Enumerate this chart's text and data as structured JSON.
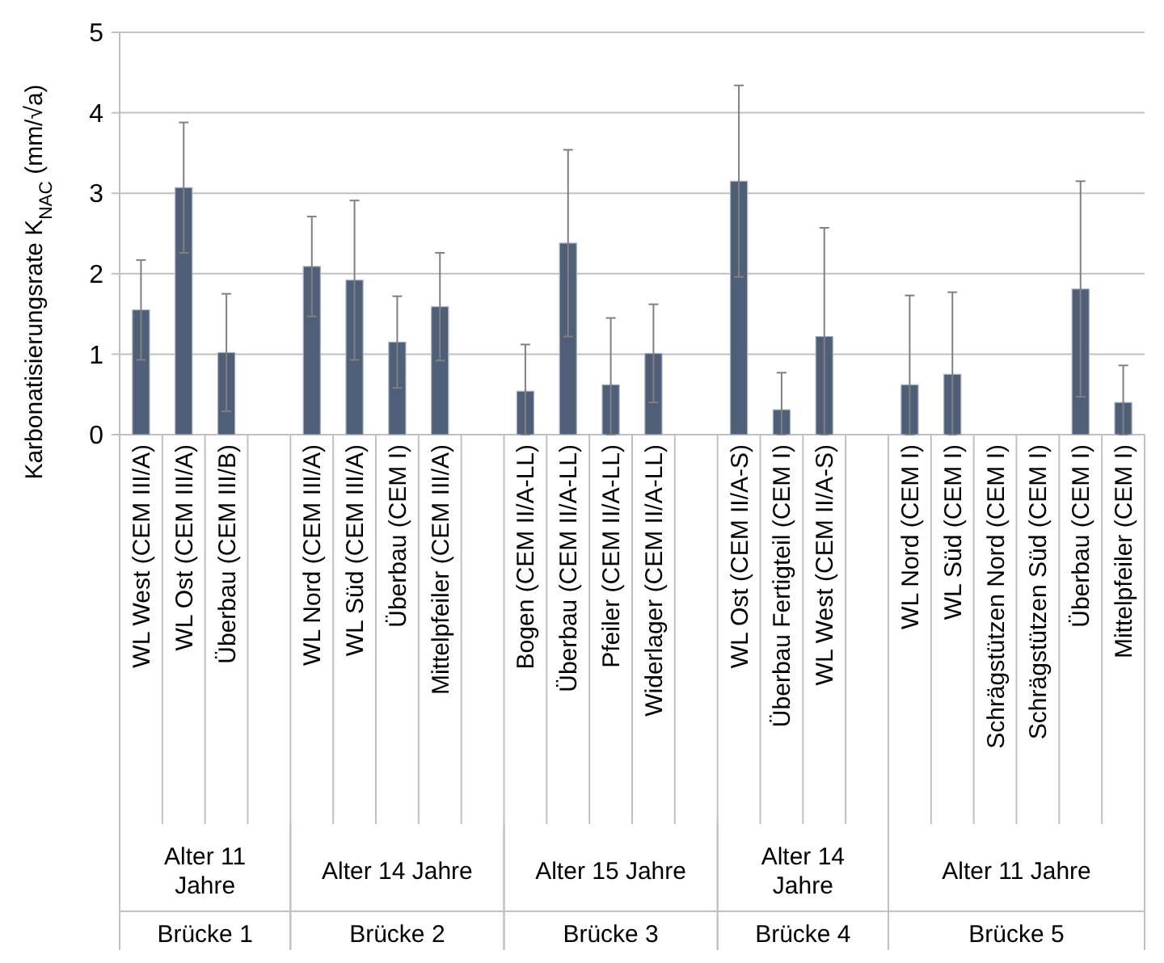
{
  "chart_data": {
    "type": "bar",
    "ylabel": "Karbonatisierungsrate K$_{NAC}$ (mm/√a)",
    "categories": [
      "WL West (CEM III/A)",
      "WL Ost (CEM III/A)",
      "Überbau (CEM III/B)",
      null,
      "WL Nord (CEM III/A)",
      "WL Süd (CEM III/A)",
      "Überbau (CEM I)",
      "Mittelpfeiler (CEM III/A)",
      null,
      "Bogen (CEM II/A-LL)",
      "Überbau (CEM II/A-LL)",
      "Pfeiler (CEM II/A-LL)",
      "Widerlager (CEM II/A-LL)",
      null,
      "WL Ost (CEM II/A-S)",
      "Überbau Fertigteil (CEM I)",
      "WL West (CEM II/A-S)",
      null,
      "WL Nord (CEM I)",
      "WL Süd (CEM I)",
      "Schrägstützen Nord (CEM I)",
      "Schrägstützen Süd (CEM I)",
      "Überbau (CEM I)",
      "Mittelpfeiler (CEM I)"
    ],
    "values": [
      1.55,
      3.07,
      1.02,
      null,
      2.09,
      1.92,
      1.15,
      1.59,
      null,
      0.54,
      2.38,
      0.62,
      1.01,
      null,
      3.15,
      0.31,
      1.22,
      null,
      0.62,
      0.75,
      null,
      null,
      1.81,
      0.4
    ],
    "errors": [
      0.62,
      0.81,
      0.73,
      null,
      0.62,
      0.99,
      0.57,
      0.67,
      null,
      [
        0,
        1.12
      ],
      1.16,
      [
        0,
        1.45
      ],
      0.61,
      null,
      1.19,
      [
        0,
        0.77
      ],
      [
        0,
        2.57
      ],
      null,
      [
        0,
        1.73
      ],
      [
        0,
        1.77
      ],
      null,
      null,
      1.34,
      [
        0,
        0.86
      ]
    ],
    "color": "#4f5f77",
    "ylim": [
      0,
      5
    ],
    "yticks": [
      0,
      1,
      2,
      3,
      4,
      5
    ],
    "grid": "y",
    "annotations": [
      "Alter 11 Jahre",
      "Alter 14 Jahre",
      "Alter 15 Jahre",
      "Alter 14 Jahre",
      "Alter 11 Jahre",
      "Brücke 1",
      "Brücke 2",
      "Brücke 3",
      "Brücke 4",
      "Brücke 5"
    ]
  }
}
